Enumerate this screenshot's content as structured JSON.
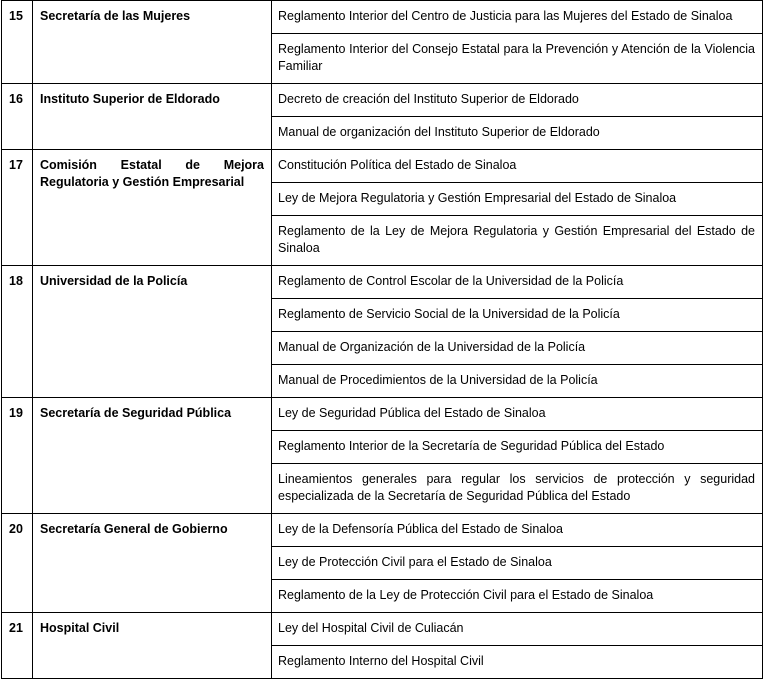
{
  "rows": [
    {
      "number": "15",
      "entity": "Secretaría de las Mujeres",
      "documents": [
        "Reglamento Interior del Centro de Justicia para las Mujeres del Estado de Sinaloa",
        "Reglamento Interior del Consejo Estatal para la Prevención y Atención de la Violencia Familiar"
      ]
    },
    {
      "number": "16",
      "entity": "Instituto Superior de Eldorado",
      "documents": [
        "Decreto de creación del Instituto Superior de Eldorado",
        "Manual de organización del Instituto Superior de Eldorado"
      ]
    },
    {
      "number": "17",
      "entity": "Comisión Estatal de Mejora Regulatoria y Gestión Empresarial",
      "documents": [
        "Constitución Política del Estado de Sinaloa",
        "Ley de Mejora Regulatoria y Gestión Empresarial del Estado de Sinaloa",
        "Reglamento de la Ley de Mejora Regulatoria y Gestión Empresarial del Estado de Sinaloa"
      ]
    },
    {
      "number": "18",
      "entity": "Universidad de la Policía",
      "documents": [
        "Reglamento de Control Escolar de la Universidad de la Policía",
        "Reglamento de Servicio Social de la Universidad de la Policía",
        "Manual de Organización de la Universidad de la Policía",
        "Manual de Procedimientos de la Universidad de la Policía"
      ]
    },
    {
      "number": "19",
      "entity": "Secretaría de Seguridad Pública",
      "documents": [
        "Ley de Seguridad Pública del Estado de Sinaloa",
        "Reglamento Interior de la Secretaría de Seguridad Pública del Estado",
        "Lineamientos generales para regular los servicios de protección y seguridad especializada de la Secretaría de Seguridad Pública del Estado"
      ]
    },
    {
      "number": "20",
      "entity": "Secretaría General de Gobierno",
      "documents": [
        "Ley de la Defensoría Pública del Estado de Sinaloa",
        "Ley de Protección Civil para el Estado de Sinaloa",
        "Reglamento de la Ley de Protección Civil para el Estado de Sinaloa"
      ]
    },
    {
      "number": "21",
      "entity": "Hospital Civil",
      "documents": [
        "Ley del Hospital Civil de Culiacán",
        "Reglamento Interno del Hospital Civil"
      ]
    }
  ]
}
